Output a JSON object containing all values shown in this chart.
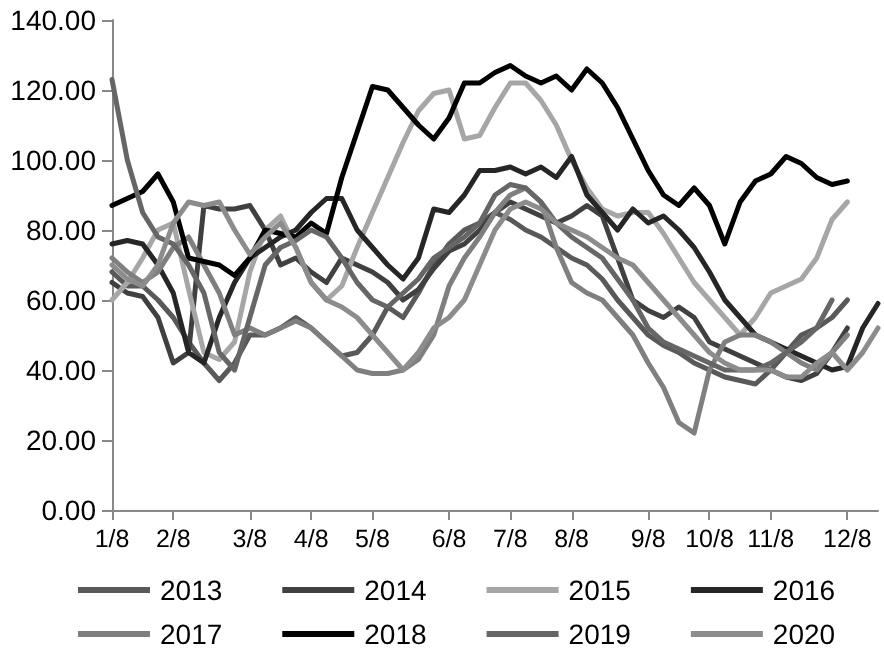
{
  "chart_data": {
    "type": "line",
    "categories": [
      "1/8",
      null,
      null,
      null,
      "2/8",
      null,
      null,
      null,
      null,
      "3/8",
      null,
      null,
      null,
      "4/8",
      null,
      null,
      null,
      "5/8",
      null,
      null,
      null,
      null,
      "6/8",
      null,
      null,
      null,
      "7/8",
      null,
      null,
      null,
      "8/8",
      null,
      null,
      null,
      null,
      "9/8",
      null,
      null,
      null,
      "10/8",
      null,
      null,
      null,
      "11/8",
      null,
      null,
      null,
      null,
      "12/8",
      null,
      null
    ],
    "ylim": [
      0,
      140
    ],
    "yticks": [
      {
        "value": 0,
        "label": "0.00"
      },
      {
        "value": 20,
        "label": "20.00"
      },
      {
        "value": 40,
        "label": "40.00"
      },
      {
        "value": 60,
        "label": "60.00"
      },
      {
        "value": 80,
        "label": "80.00"
      },
      {
        "value": 100,
        "label": "100.00"
      },
      {
        "value": 120,
        "label": "120.00"
      },
      {
        "value": 140,
        "label": "140.00"
      }
    ],
    "grid": false,
    "legend": "bottom",
    "marker": "none",
    "line_style": "solid",
    "series": [
      {
        "name": "2013",
        "color": "#595959",
        "values": [
          68,
          64,
          64,
          60,
          55,
          48,
          42,
          37,
          42,
          50,
          50,
          52,
          55,
          52,
          48,
          44,
          45,
          50,
          58,
          55,
          62,
          70,
          76,
          80,
          82,
          85,
          83,
          80,
          78,
          75,
          72,
          70,
          66,
          60,
          55,
          50,
          47,
          45,
          42,
          40,
          38,
          37,
          36,
          40,
          45,
          50,
          52,
          55,
          60,
          null,
          null
        ]
      },
      {
        "name": "2014",
        "color": "#404040",
        "values": [
          65,
          62,
          61,
          55,
          42,
          45,
          87,
          86,
          86,
          87,
          80,
          70,
          72,
          68,
          65,
          72,
          70,
          68,
          65,
          60,
          63,
          69,
          74,
          76,
          80,
          85,
          88,
          86,
          84,
          82,
          84,
          87,
          84,
          72,
          60,
          57,
          55,
          58,
          55,
          48,
          46,
          44,
          42,
          40,
          38,
          37,
          39,
          45,
          52,
          null,
          null
        ]
      },
      {
        "name": "2015",
        "color": "#a6a6a6",
        "values": [
          60,
          65,
          72,
          80,
          82,
          63,
          45,
          43,
          48,
          68,
          80,
          84,
          75,
          65,
          60,
          64,
          75,
          85,
          95,
          105,
          114,
          119,
          120,
          106,
          107,
          115,
          122,
          122,
          117,
          110,
          100,
          92,
          86,
          84,
          85,
          85,
          79,
          72,
          65,
          60,
          55,
          50,
          55,
          62,
          64,
          66,
          72,
          83,
          88,
          null,
          null
        ]
      },
      {
        "name": "2016",
        "color": "#262626",
        "values": [
          76,
          77,
          76,
          70,
          62,
          45,
          42,
          55,
          65,
          72,
          75,
          78,
          80,
          85,
          89,
          89,
          80,
          75,
          70,
          66,
          72,
          86,
          85,
          90,
          97,
          97,
          98,
          96,
          98,
          95,
          101,
          90,
          85,
          80,
          86,
          82,
          84,
          80,
          75,
          68,
          60,
          55,
          50,
          48,
          46,
          44,
          42,
          40,
          41,
          52,
          59
        ]
      },
      {
        "name": "2017",
        "color": "#7f7f7f",
        "values": [
          72,
          68,
          65,
          68,
          75,
          78,
          70,
          62,
          50,
          52,
          50,
          52,
          54,
          52,
          48,
          44,
          40,
          39,
          39,
          40,
          43,
          50,
          64,
          72,
          78,
          85,
          90,
          92,
          88,
          75,
          65,
          62,
          60,
          55,
          50,
          42,
          35,
          25,
          22,
          40,
          48,
          50,
          50,
          48,
          45,
          42,
          40,
          45,
          50,
          null,
          null
        ]
      },
      {
        "name": "2018",
        "color": "#000000",
        "values": [
          87,
          89,
          91,
          96,
          88,
          72,
          71,
          70,
          67,
          72,
          80,
          79,
          78,
          82,
          79,
          95,
          108,
          121,
          120,
          115,
          110,
          106,
          112,
          122,
          122,
          125,
          127,
          124,
          122,
          124,
          120,
          126,
          122,
          115,
          106,
          97,
          90,
          87,
          92,
          87,
          76,
          88,
          94,
          96,
          101,
          99,
          95,
          93,
          94,
          null,
          null
        ]
      },
      {
        "name": "2019",
        "color": "#666666",
        "values": [
          123,
          100,
          85,
          78,
          76,
          70,
          62,
          45,
          40,
          55,
          70,
          75,
          77,
          80,
          78,
          72,
          65,
          60,
          58,
          62,
          66,
          72,
          75,
          78,
          82,
          90,
          93,
          92,
          88,
          82,
          78,
          75,
          72,
          66,
          60,
          52,
          48,
          46,
          44,
          42,
          40,
          40,
          40,
          42,
          45,
          48,
          52,
          60,
          null,
          null,
          null
        ]
      },
      {
        "name": "2020",
        "color": "#8c8c8c",
        "values": [
          70,
          66,
          64,
          70,
          82,
          88,
          87,
          88,
          80,
          73,
          78,
          82,
          75,
          65,
          60,
          58,
          55,
          50,
          45,
          40,
          45,
          52,
          55,
          60,
          70,
          80,
          86,
          88,
          86,
          82,
          80,
          78,
          75,
          72,
          70,
          65,
          60,
          55,
          50,
          45,
          42,
          40,
          40,
          40,
          38,
          38,
          42,
          45,
          40,
          45,
          52
        ]
      }
    ]
  }
}
